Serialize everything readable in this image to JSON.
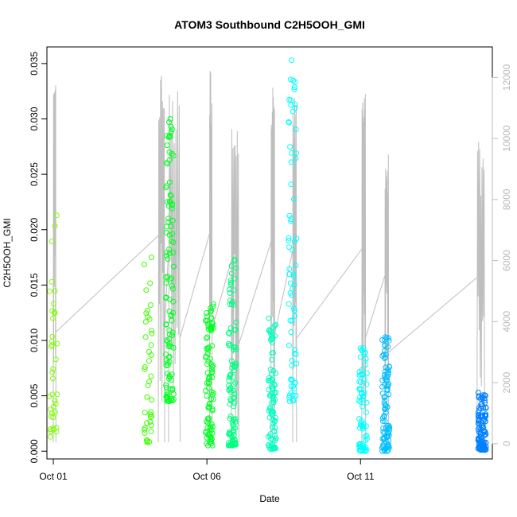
{
  "chart_data": {
    "type": "scatter",
    "title": "ATOM3 Southbound C2H5OOH_GMI",
    "xlabel": "Date",
    "ylabel": "C2H5OOH_GMI",
    "x_axis": {
      "type": "date",
      "range": [
        "2016-09-30T19:00",
        "2016-10-15T07:00"
      ],
      "ticks": [
        {
          "value": "2016-10-01T00:00",
          "label": "Oct 01"
        },
        {
          "value": "2016-10-06T00:00",
          "label": "Oct 06"
        },
        {
          "value": "2016-10-11T00:00",
          "label": "Oct 11"
        }
      ]
    },
    "y_axis": {
      "range": [
        -0.0007,
        0.0365
      ],
      "ticks": [
        "0.000",
        "0.005",
        "0.010",
        "0.015",
        "0.020",
        "0.025",
        "0.030",
        "0.035"
      ]
    },
    "y2_axis": {
      "range": [
        -500,
        13000
      ],
      "ticks": [
        "0",
        "2000",
        "4000",
        "6000",
        "8000",
        "10000",
        "12000"
      ],
      "color": "#bebebe"
    },
    "grid": false,
    "point_style": "open circle",
    "colors": {
      "altitude_line": "#bebebe",
      "flights": [
        "#80ff00",
        "#40ff00",
        "#00ff20",
        "#00ff80",
        "#00ffbf",
        "#00ffff",
        "#00bfff",
        "#0080ff"
      ]
    },
    "series": [
      {
        "x": "2016-10-01T00:00",
        "y_min": 0.0013,
        "y_max": 0.0213,
        "n": 38
      },
      {
        "x": "2016-10-04T02:00",
        "y_min": 0.0008,
        "y_max": 0.0175,
        "n": 40
      },
      {
        "x": "2016-10-04T19:00",
        "y_min": 0.0045,
        "y_max": 0.03,
        "n": 110
      },
      {
        "x": "2016-10-06T02:00",
        "y_min": 0.0005,
        "y_max": 0.0133,
        "n": 95
      },
      {
        "x": "2016-10-06T20:00",
        "y_min": 0.0005,
        "y_max": 0.0173,
        "n": 105
      },
      {
        "x": "2016-10-08T03:00",
        "y_min": 0.0002,
        "y_max": 0.012,
        "n": 90
      },
      {
        "x": "2016-10-08T19:00",
        "y_min": 0.0045,
        "y_max": 0.0353,
        "n": 70
      },
      {
        "x": "2016-10-11T02:00",
        "y_min": 0.0,
        "y_max": 0.0093,
        "n": 75
      },
      {
        "x": "2016-10-11T20:00",
        "y_min": 0.0,
        "y_max": 0.0103,
        "n": 95
      },
      {
        "x": "2016-10-14T23:00",
        "y_min": 0.0001,
        "y_max": 0.0053,
        "n": 110
      }
    ],
    "altitude_profiles": [
      {
        "start": "2016-10-01T00:00",
        "end": "2016-10-01T02:00",
        "peak": 12200
      },
      {
        "start": "2016-10-04T10:00",
        "end": "2016-10-04T15:00",
        "peak": 12400
      },
      {
        "start": "2016-10-04T18:00",
        "end": "2016-10-05T03:00",
        "peak": 11600
      },
      {
        "start": "2016-10-06T02:00",
        "end": "2016-10-06T04:00",
        "peak": 12500
      },
      {
        "start": "2016-10-06T19:00",
        "end": "2016-10-07T01:00",
        "peak": 10900
      },
      {
        "start": "2016-10-08T02:00",
        "end": "2016-10-08T05:00",
        "peak": 12000
      },
      {
        "start": "2016-10-08T19:00",
        "end": "2016-10-08T22:00",
        "peak": 11500
      },
      {
        "start": "2016-10-11T01:00",
        "end": "2016-10-11T04:00",
        "peak": 11600
      },
      {
        "start": "2016-10-11T19:00",
        "end": "2016-10-11T22:00",
        "peak": 10000
      },
      {
        "start": "2016-10-14T19:00",
        "end": "2016-10-15T01:00",
        "peak": 9900
      }
    ]
  }
}
